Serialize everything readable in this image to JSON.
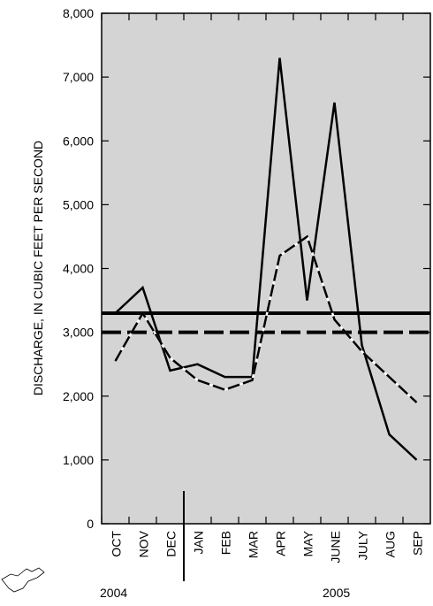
{
  "chart_data": {
    "type": "line",
    "y_label": "DISCHARGE, IN CUBIC FEET PER SECOND",
    "categories": [
      "OCT",
      "NOV",
      "DEC",
      "JAN",
      "FEB",
      "MAR",
      "APR",
      "MAY",
      "JUNE",
      "JULY",
      "AUG",
      "SEP"
    ],
    "year_labels": [
      "2004",
      "2005"
    ],
    "series": [
      {
        "color": "#000000",
        "style": "solid",
        "values": [
          3300,
          3700,
          2400,
          2500,
          2300,
          2300,
          7300,
          3500,
          6600,
          2800,
          1400,
          1000
        ]
      },
      {
        "color": "#000000",
        "style": "dashed",
        "values": [
          2550,
          3300,
          2600,
          2250,
          2100,
          2250,
          4200,
          4500,
          3200,
          2700,
          2300,
          1900
        ]
      }
    ],
    "hlines": [
      {
        "value": 3300,
        "style": "solid",
        "color": "#000000"
      },
      {
        "value": 3000,
        "style": "dashed",
        "color": "#000000"
      }
    ],
    "ylim": [
      0,
      8000
    ],
    "yticks": [
      0,
      {
        "value": 1000,
        "label": "1,000"
      },
      {
        "value": 2000,
        "label": "2,000"
      },
      {
        "value": 3000,
        "label": "3,000"
      },
      {
        "value": 4000,
        "label": "4,000"
      },
      {
        "value": 5000,
        "label": "5,000"
      },
      {
        "value": 6000,
        "label": "6,000"
      },
      {
        "value": 7000,
        "label": "7,000"
      },
      {
        "value": 8000,
        "label": "8,000"
      }
    ],
    "background": "#d4d4d4"
  }
}
